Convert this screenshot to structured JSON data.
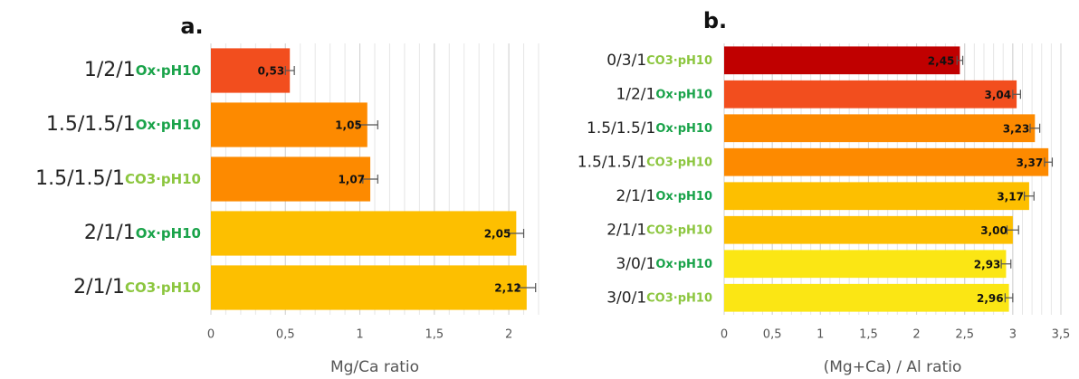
{
  "chart_data": [
    {
      "type": "bar",
      "title": "a.",
      "x_label": "Mg/Ca ratio",
      "categories": [
        "1/2/1",
        "1.5/1.5/1",
        "1.5/1.5/1",
        "2/1/1",
        "2/1/1"
      ],
      "category_suffixes": [
        "Ox·pH10",
        "Ox·pH10",
        "CO3·pH10",
        "Ox·pH10",
        "CO3·pH10"
      ],
      "suffix_colors": [
        "#1aa34a",
        "#1aa34a",
        "#8cc63f",
        "#1aa34a",
        "#8cc63f"
      ],
      "values": [
        0.53,
        1.05,
        1.07,
        2.05,
        2.12
      ],
      "value_labels": [
        "0,53",
        "1,05",
        "1,07",
        "2,05",
        "2,12"
      ],
      "errors": [
        0.03,
        0.07,
        0.05,
        0.05,
        0.06
      ],
      "colors": [
        "#f24e1e",
        "#fd8a00",
        "#fd8a00",
        "#fdbf00",
        "#fdbf00"
      ],
      "xlim": [
        0,
        2.2
      ],
      "xticks": [
        0,
        {
          "value": 0.5,
          "label": "0,5"
        },
        1,
        {
          "value": 1.5,
          "label": "1,5"
        },
        2
      ],
      "grid": true,
      "minor_grid_step": 0.1
    },
    {
      "type": "bar",
      "title": "b.",
      "x_label": "(Mg+Ca) / Al ratio",
      "categories": [
        "0/3/1",
        "1/2/1",
        "1.5/1.5/1",
        "1.5/1.5/1",
        "2/1/1",
        "2/1/1",
        "3/0/1",
        "3/0/1"
      ],
      "category_suffixes": [
        "CO3·pH10",
        "Ox·pH10",
        "Ox·pH10",
        "CO3·pH10",
        "Ox·pH10",
        "CO3·pH10",
        "Ox·pH10",
        "CO3·pH10"
      ],
      "suffix_colors": [
        "#8cc63f",
        "#1aa34a",
        "#1aa34a",
        "#8cc63f",
        "#1aa34a",
        "#8cc63f",
        "#1aa34a",
        "#8cc63f"
      ],
      "values": [
        2.45,
        3.04,
        3.23,
        3.37,
        3.17,
        3.0,
        2.93,
        2.96
      ],
      "value_labels": [
        "2,45",
        "3,04",
        "3,23",
        "3,37",
        "3,17",
        "3,00",
        "2,93",
        "2,96"
      ],
      "errors": [
        0.03,
        0.04,
        0.05,
        0.04,
        0.05,
        0.06,
        0.05,
        0.04
      ],
      "colors": [
        "#c00000",
        "#f24e1e",
        "#fd8a00",
        "#fd8a00",
        "#fdbf00",
        "#fdbf00",
        "#fbe614",
        "#fbe614"
      ],
      "xlim": [
        0,
        3.5
      ],
      "xticks": [
        0,
        {
          "value": 0.5,
          "label": "0,5"
        },
        1,
        {
          "value": 1.5,
          "label": "1,5"
        },
        2,
        {
          "value": 2.5,
          "label": "2,5"
        },
        3,
        {
          "value": 3.5,
          "label": "3,5"
        }
      ],
      "grid": true,
      "minor_grid_step": 0.1
    }
  ]
}
